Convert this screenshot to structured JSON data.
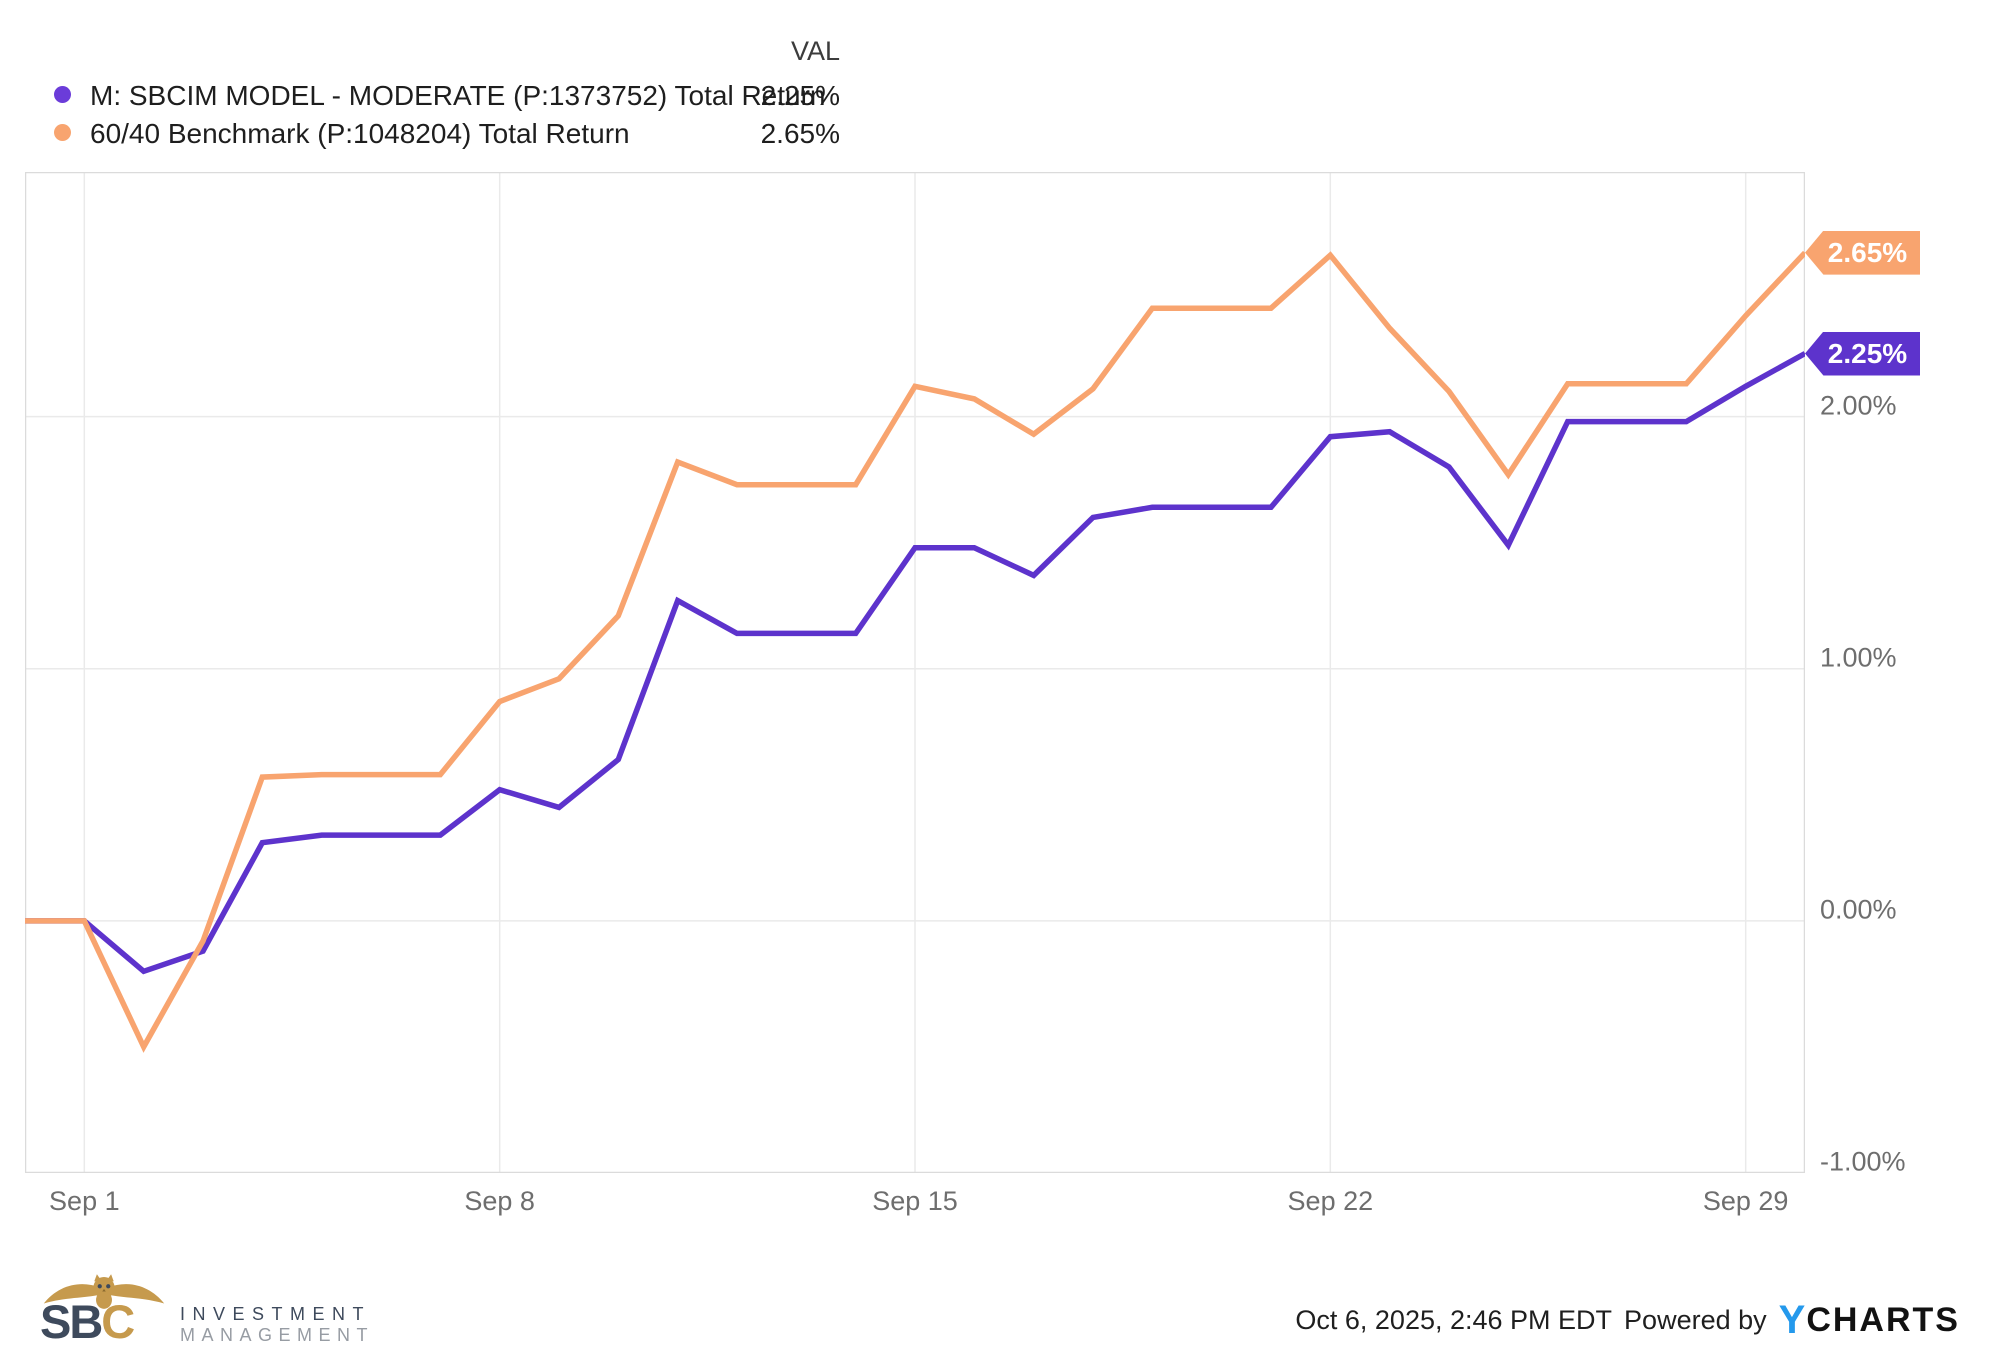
{
  "legend": {
    "val_header": "VAL",
    "series": [
      {
        "label": "M: SBCIM MODEL - MODERATE (P:1373752) Total Return",
        "value": "2.25%",
        "dot_color": "#6b3cd9"
      },
      {
        "label": "60/40 Benchmark (P:1048204) Total Return",
        "value": "2.65%",
        "dot_color": "#f8a46f"
      }
    ]
  },
  "chart_data": {
    "type": "line",
    "x": [
      "Aug 31",
      "Sep 1",
      "Sep 2",
      "Sep 3",
      "Sep 4",
      "Sep 5",
      "Sep 6",
      "Sep 7",
      "Sep 8",
      "Sep 9",
      "Sep 10",
      "Sep 11",
      "Sep 12",
      "Sep 13",
      "Sep 14",
      "Sep 15",
      "Sep 16",
      "Sep 17",
      "Sep 18",
      "Sep 19",
      "Sep 20",
      "Sep 21",
      "Sep 22",
      "Sep 23",
      "Sep 24",
      "Sep 25",
      "Sep 26",
      "Sep 27",
      "Sep 28",
      "Sep 29",
      "Sep 30"
    ],
    "series": [
      {
        "name": "M: SBCIM MODEL - MODERATE (P:1373752) Total Return",
        "color": "#5d33cc",
        "end_label": "2.25%",
        "values": [
          0.0,
          0.0,
          -0.2,
          -0.12,
          0.31,
          0.34,
          0.34,
          0.34,
          0.52,
          0.45,
          0.64,
          1.27,
          1.14,
          1.14,
          1.14,
          1.48,
          1.48,
          1.37,
          1.6,
          1.64,
          1.64,
          1.64,
          1.92,
          1.94,
          1.8,
          1.49,
          1.98,
          1.98,
          1.98,
          2.12,
          2.25
        ]
      },
      {
        "name": "60/40 Benchmark (P:1048204) Total Return",
        "color": "#f8a46f",
        "end_label": "2.65%",
        "values": [
          0.0,
          0.0,
          -0.5,
          -0.08,
          0.57,
          0.58,
          0.58,
          0.58,
          0.87,
          0.96,
          1.21,
          1.82,
          1.73,
          1.73,
          1.73,
          2.12,
          2.07,
          1.93,
          2.11,
          2.43,
          2.43,
          2.43,
          2.64,
          2.35,
          2.1,
          1.77,
          2.13,
          2.13,
          2.13,
          2.4,
          2.65
        ]
      }
    ],
    "x_ticks": [
      {
        "label": "Sep 1",
        "i": 1
      },
      {
        "label": "Sep 8",
        "i": 8
      },
      {
        "label": "Sep 15",
        "i": 15
      },
      {
        "label": "Sep 22",
        "i": 22
      },
      {
        "label": "Sep 29",
        "i": 29
      }
    ],
    "y_ticks": [
      {
        "label": "2.00%",
        "v": 2
      },
      {
        "label": "1.00%",
        "v": 1
      },
      {
        "label": "0.00%",
        "v": 0
      },
      {
        "label": "-1.00%",
        "v": -1
      }
    ],
    "ylim": [
      -1.0,
      2.97
    ],
    "y_unit": "percent",
    "grid": true,
    "legend_position": "top-left"
  },
  "footer": {
    "timestamp": "Oct 6, 2025, 2:46 PM EDT",
    "powered_by": "Powered by",
    "brand_y": "Y",
    "brand_rest": "CHARTS",
    "logo": {
      "sb": "SB",
      "c": "C",
      "line1": "INVESTMENT",
      "line2": "MANAGEMENT"
    }
  },
  "colors": {
    "purple_line": "#5d33cc",
    "orange_line": "#f8a46f",
    "grid": "#eaeaea",
    "plot_border": "#dbdbdb",
    "tick_label": "#6e6e6e",
    "tag_text": "#ffffff",
    "ycharts_blue": "#2499ec",
    "logo_slate": "#3e4a5c",
    "logo_gold": "#c69a4d",
    "logo_gray": "#979ca3"
  }
}
